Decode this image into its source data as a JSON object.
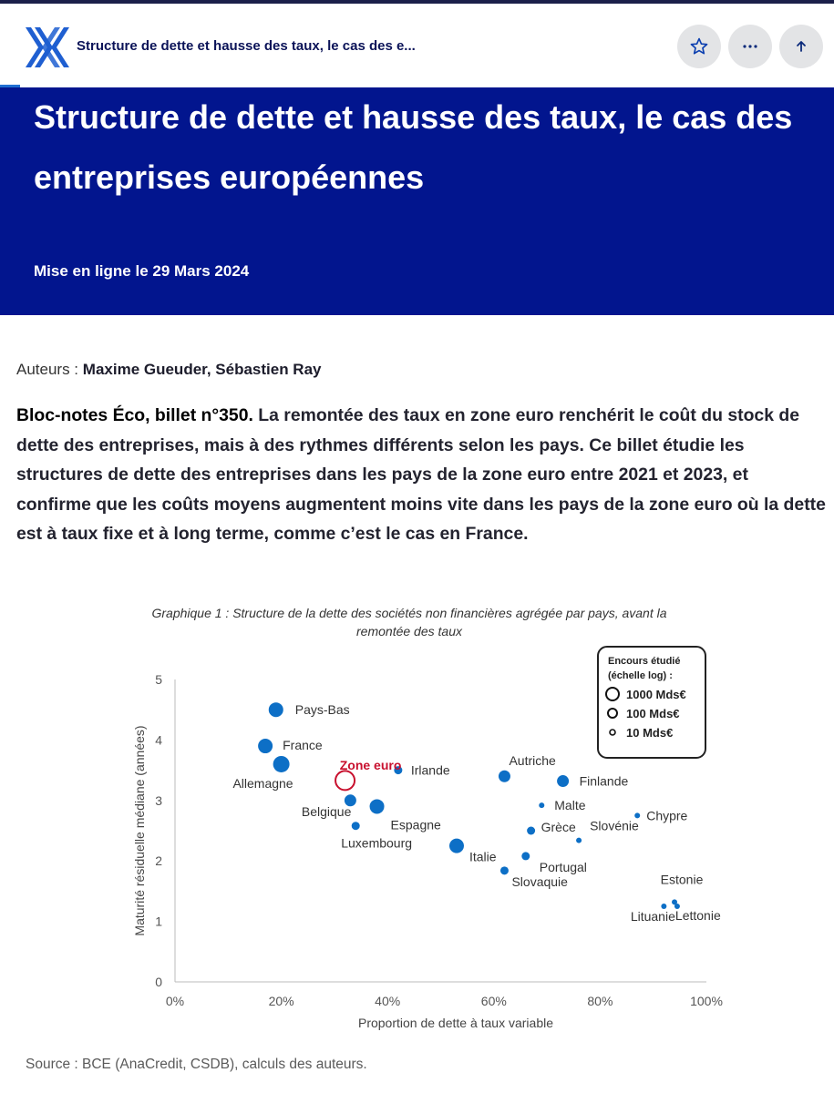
{
  "topbar": {
    "title": "Structure de dette et hausse des taux, le cas des e...",
    "buttons": [
      {
        "icon": "star-icon"
      },
      {
        "icon": "more-icon"
      },
      {
        "icon": "arrow-up-icon"
      }
    ]
  },
  "hero": {
    "title": "Structure de dette et hausse des taux, le cas des entreprises européennes",
    "date": "Mise en ligne le 29 Mars 2024",
    "background": "#02158e"
  },
  "authors": {
    "label": "Auteurs :",
    "names": "Maxime Gueuder, Sébastien Ray"
  },
  "lead": {
    "strong": "Bloc-notes Éco, billet n°350.",
    "body": " La remontée des taux en zone euro renchérit le coût du stock de dette des entreprises, mais à des rythmes différents selon les pays. Ce billet étudie les structures de dette des entreprises dans les pays de la zone euro entre 2021 et 2023, et confirme que les coûts moyens augmentent moins vite dans les pays de la zone euro où la dette est à taux fixe et à long terme, comme c’est le cas en France."
  },
  "chart_data": {
    "type": "scatter",
    "title_line1": "Graphique 1 : Structure de la dette des sociétés non financières agrégée par pays, avant la",
    "title_line2": "remontée des taux",
    "xlabel": "Proportion de dette à taux variable",
    "ylabel": "Maturité résiduelle médiane (années)",
    "xlim": [
      0,
      100
    ],
    "ylim": [
      0,
      5
    ],
    "x_ticks": [
      "0%",
      "20%",
      "40%",
      "60%",
      "80%",
      "100%"
    ],
    "y_ticks": [
      "0",
      "1",
      "2",
      "3",
      "4",
      "5"
    ],
    "grid": false,
    "legend": {
      "placement": "top-right",
      "title_line1": "Encours étudié",
      "title_line2": "(échelle log) :",
      "entries": [
        "1000 Mds€",
        "100 Mds€",
        "10 Mds€"
      ]
    },
    "point_color": "#0d6fc6",
    "highlight_color": "#c8102e",
    "points": [
      {
        "label": "Pays-Bas",
        "x": 19,
        "y": 4.5,
        "size": "large"
      },
      {
        "label": "France",
        "x": 17,
        "y": 3.9,
        "size": "large"
      },
      {
        "label": "Allemagne",
        "x": 20,
        "y": 3.6,
        "size": "xlarge"
      },
      {
        "label": "Zone euro",
        "x": 32,
        "y": 3.33,
        "size": "xxlarge",
        "highlight": true
      },
      {
        "label": "Irlande",
        "x": 42,
        "y": 3.5,
        "size": "small"
      },
      {
        "label": "Belgique",
        "x": 33,
        "y": 3.0,
        "size": "medium"
      },
      {
        "label": "Espagne",
        "x": 38,
        "y": 2.9,
        "size": "large"
      },
      {
        "label": "Luxembourg",
        "x": 34,
        "y": 2.58,
        "size": "small"
      },
      {
        "label": "Italie",
        "x": 53,
        "y": 2.25,
        "size": "large"
      },
      {
        "label": "Autriche",
        "x": 62,
        "y": 3.4,
        "size": "medium"
      },
      {
        "label": "Finlande",
        "x": 73,
        "y": 3.32,
        "size": "medium"
      },
      {
        "label": "Malte",
        "x": 69,
        "y": 2.92,
        "size": "tiny"
      },
      {
        "label": "Grèce",
        "x": 67,
        "y": 2.5,
        "size": "small"
      },
      {
        "label": "Slovénie",
        "x": 76,
        "y": 2.34,
        "size": "tiny"
      },
      {
        "label": "Portugal",
        "x": 66,
        "y": 2.08,
        "size": "small"
      },
      {
        "label": "Slovaquie",
        "x": 62,
        "y": 1.84,
        "size": "small"
      },
      {
        "label": "Chypre",
        "x": 87,
        "y": 2.75,
        "size": "tiny"
      },
      {
        "label": "Estonie",
        "x": 94,
        "y": 1.32,
        "size": "tiny"
      },
      {
        "label": "Lettonie",
        "x": 94.5,
        "y": 1.25,
        "size": "tiny"
      },
      {
        "label": "Lituanie",
        "x": 92,
        "y": 1.25,
        "size": "tiny"
      }
    ],
    "source": "Source : BCE (AnaCredit, CSDB), calculs des auteurs."
  }
}
